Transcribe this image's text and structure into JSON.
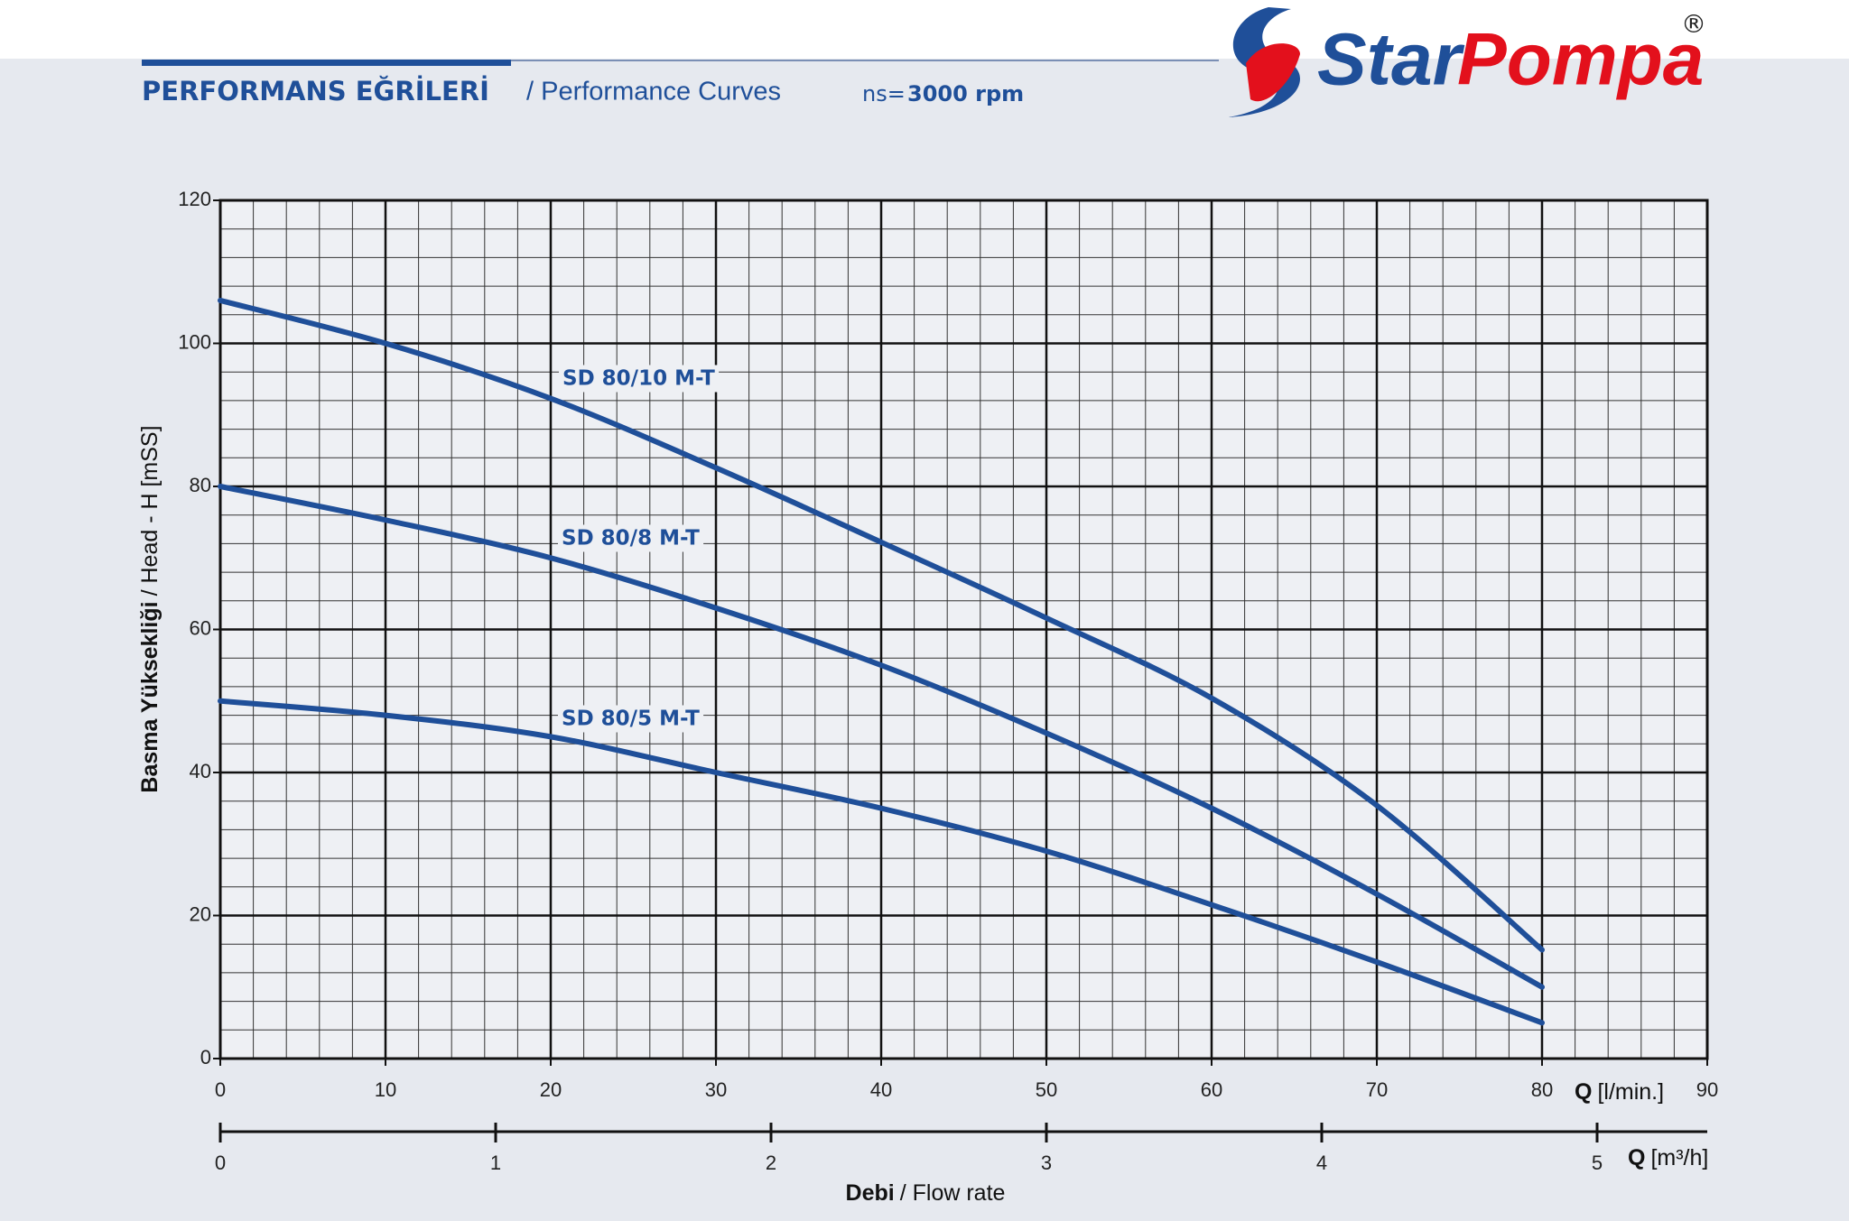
{
  "header": {
    "title_tr": "PERFORMANS EĞRİLERİ",
    "title_en": "/ Performance Curves",
    "speed_label": "ns=",
    "speed": "3000 rpm"
  },
  "logo": {
    "word1": "Star",
    "word2": "Pompa",
    "mark": "®"
  },
  "chart_data": {
    "type": "line",
    "y_label_bold": "Basma Yüksekliği",
    "y_label": "/ Head - H [mSS]",
    "x_label_bold": "Debi",
    "x_label": "/ Flow rate",
    "x_unit_bold": "Q",
    "x_unit": "[l/min.]",
    "x2_unit_bold": "Q",
    "x2_unit": "[m³/h]",
    "x": [
      0,
      10,
      20,
      30,
      40,
      50,
      60,
      70,
      80
    ],
    "series": [
      {
        "name": "SD 80/10 M-T",
        "color": "#1f4f99",
        "values": [
          106,
          100,
          92.3,
          82.6,
          72.2,
          61.6,
          50.4,
          35.4,
          15.2
        ]
      },
      {
        "name": "SD 80/8 M-T",
        "color": "#1f4f99",
        "values": [
          80,
          75.3,
          70,
          63,
          55,
          45.5,
          35,
          23,
          10
        ]
      },
      {
        "name": "SD 80/5 M-T",
        "color": "#1f4f99",
        "values": [
          50,
          48,
          45,
          40,
          35,
          29,
          21.5,
          13.5,
          5
        ]
      }
    ],
    "xlim": [
      0,
      90
    ],
    "xticks": [
      0,
      10,
      20,
      30,
      40,
      50,
      60,
      70,
      80,
      90
    ],
    "ylim": [
      0,
      120
    ],
    "yticks": [
      0,
      20,
      40,
      60,
      80,
      100,
      120
    ],
    "x2lim": [
      0,
      5.4
    ],
    "x2ticks": [
      0,
      1,
      2,
      3,
      4,
      5
    ],
    "grid": true,
    "minor_grid": {
      "x": 2,
      "y": 4
    }
  }
}
